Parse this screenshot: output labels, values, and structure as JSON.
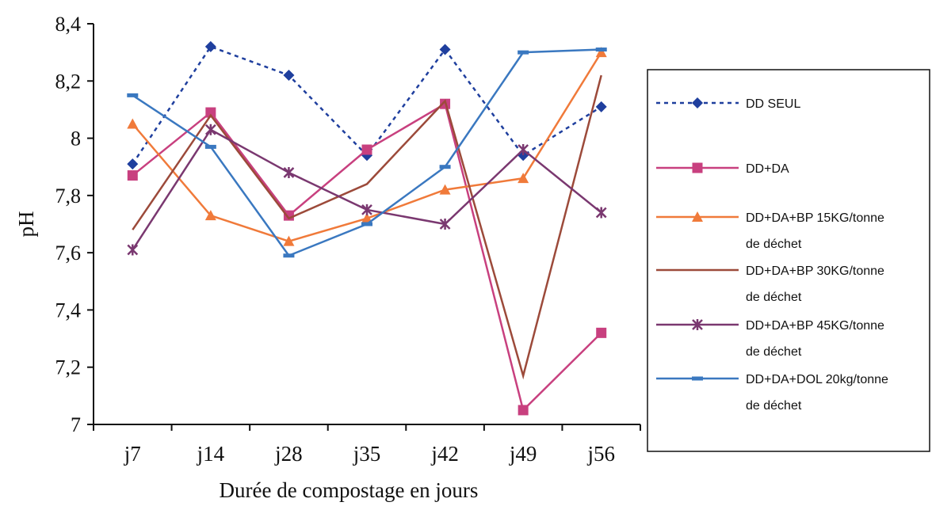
{
  "chart_data": {
    "type": "line",
    "title": "",
    "xlabel": "Durée de compostage en jours",
    "ylabel": "pH",
    "categories": [
      "j7",
      "j14",
      "j28",
      "j35",
      "j42",
      "j49",
      "j56"
    ],
    "ylim": [
      7,
      8.4
    ],
    "yticks": [
      7,
      7.2,
      7.4,
      7.6,
      7.8,
      8,
      8.2,
      8.4
    ],
    "ytick_labels": [
      "7",
      "7,2",
      "7,4",
      "7,6",
      "7,8",
      "8",
      "8,2",
      "8,4"
    ],
    "grid": false,
    "legend_position": "right",
    "series": [
      {
        "name_lines": [
          "DD SEUL"
        ],
        "values": [
          7.91,
          8.32,
          8.22,
          7.94,
          8.31,
          7.94,
          8.11
        ],
        "color": "#1f3f9e",
        "marker": "diamond",
        "dashed": true
      },
      {
        "name_lines": [
          "DD+DA"
        ],
        "values": [
          7.87,
          8.09,
          7.73,
          7.96,
          8.12,
          7.05,
          7.32
        ],
        "color": "#c8407f",
        "marker": "square",
        "dashed": false
      },
      {
        "name_lines": [
          "DD+DA+BP 15KG/tonne",
          "de déchet"
        ],
        "values": [
          8.05,
          7.73,
          7.64,
          7.72,
          7.82,
          7.86,
          8.3
        ],
        "color": "#f07a3a",
        "marker": "triangle",
        "dashed": false
      },
      {
        "name_lines": [
          "DD+DA+BP 30KG/tonne",
          "de déchet"
        ],
        "values": [
          7.68,
          8.08,
          7.72,
          7.84,
          8.13,
          7.17,
          8.22
        ],
        "color": "#9c4a3a",
        "marker": "none",
        "dashed": false
      },
      {
        "name_lines": [
          "DD+DA+BP 45KG/tonne",
          "de déchet"
        ],
        "values": [
          7.61,
          8.03,
          7.88,
          7.75,
          7.7,
          7.96,
          7.74
        ],
        "color": "#7a3870",
        "marker": "star",
        "dashed": false
      },
      {
        "name_lines": [
          "DD+DA+DOL 20kg/tonne",
          "de déchet"
        ],
        "values": [
          8.15,
          7.97,
          7.59,
          7.7,
          7.9,
          8.3,
          8.31
        ],
        "color": "#3a78c0",
        "marker": "dash",
        "dashed": false
      }
    ]
  }
}
